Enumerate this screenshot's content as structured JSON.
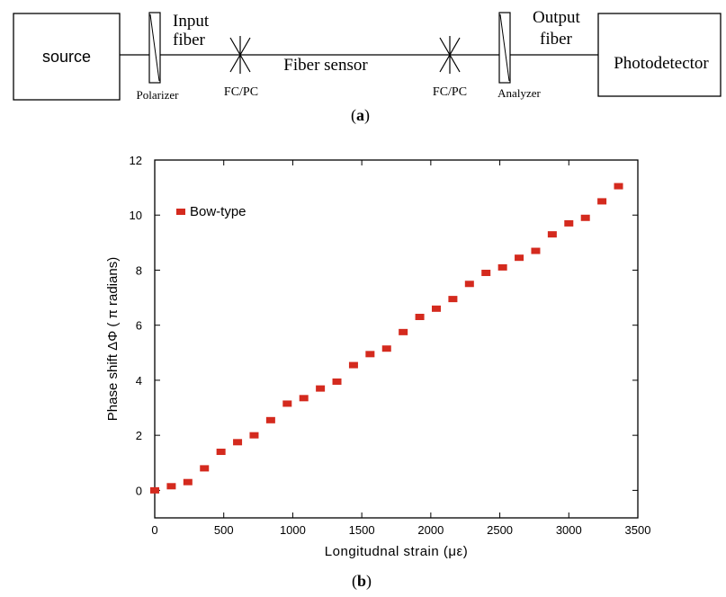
{
  "diagram": {
    "blocks": {
      "source": "source",
      "photodetector": "Photodetector"
    },
    "labels": {
      "polarizer": "Polarizer",
      "input_fiber_line1": "Input",
      "input_fiber_line2": "fiber",
      "connector_left": "FC/PC",
      "fiber_sensor": "Fiber sensor",
      "connector_right": "FC/PC",
      "analyzer": "Analyzer",
      "output_fiber_line1": "Output",
      "output_fiber_line2": "fiber"
    },
    "caption_letter": "a"
  },
  "chart_caption_letter": "b",
  "chart_data": {
    "type": "scatter",
    "xlabel": "Longitudnal strain (με)",
    "ylabel": "Phase shift ΔΦ ( π radians)",
    "xlim": [
      0,
      3500
    ],
    "ylim": [
      -1,
      12
    ],
    "xticks": [
      0,
      500,
      1000,
      1500,
      2000,
      2500,
      3000,
      3500
    ],
    "yticks": [
      0,
      2,
      4,
      6,
      8,
      10,
      12
    ],
    "grid": false,
    "legend_position": "top-left",
    "marker_color": "#d42a1e",
    "series": [
      {
        "name": "Bow-type",
        "x": [
          0,
          120,
          240,
          360,
          480,
          600,
          720,
          840,
          960,
          1080,
          1200,
          1320,
          1440,
          1560,
          1680,
          1800,
          1920,
          2040,
          2160,
          2280,
          2400,
          2520,
          2640,
          2760,
          2880,
          3000,
          3120,
          3240,
          3360
        ],
        "y": [
          0.0,
          0.15,
          0.3,
          0.8,
          1.4,
          1.75,
          2.0,
          2.55,
          3.15,
          3.35,
          3.7,
          3.95,
          4.55,
          4.95,
          5.15,
          5.75,
          6.3,
          6.6,
          6.95,
          7.5,
          7.9,
          8.1,
          8.45,
          8.7,
          9.3,
          9.7,
          9.9,
          10.5,
          11.05
        ]
      }
    ]
  }
}
